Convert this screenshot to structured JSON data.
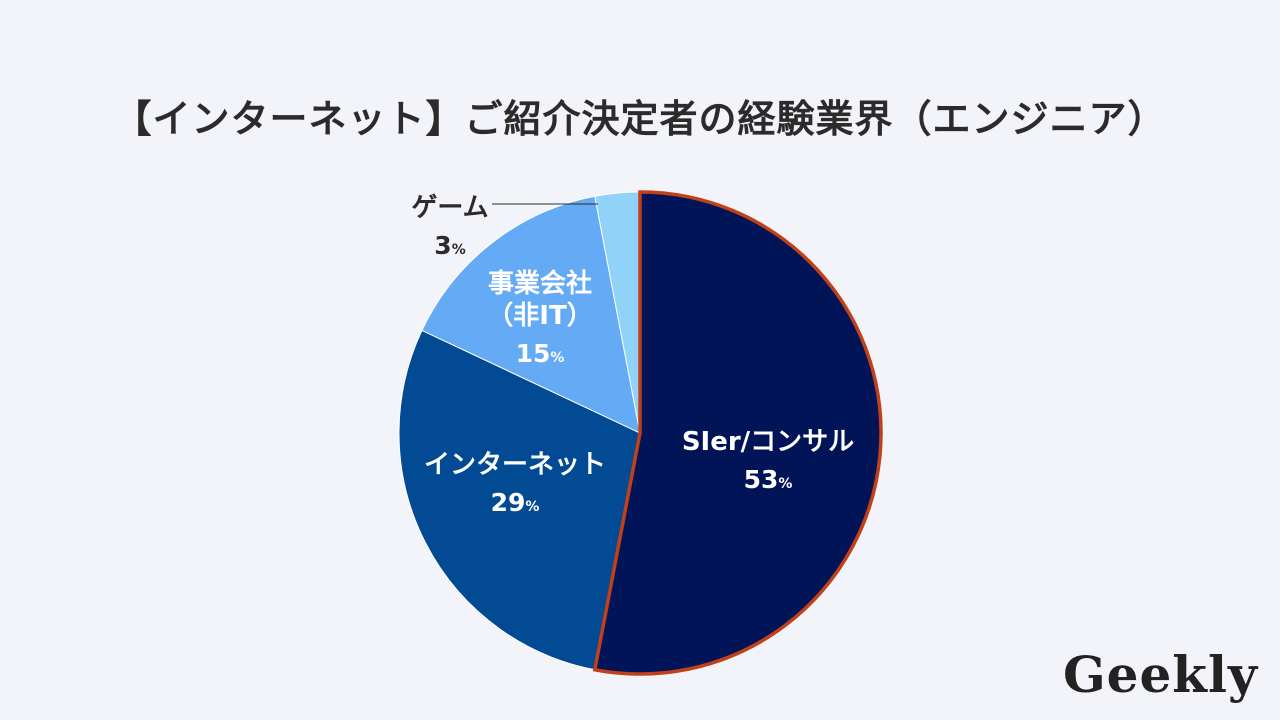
{
  "title": "【インターネット】ご紹介決定者の経験業界（エンジニア）",
  "logo": "Geekly",
  "chart_data": {
    "type": "pie",
    "title": "【インターネット】ご紹介決定者の経験業界（エンジニア）",
    "start": "12 o'clock",
    "direction": "clockwise",
    "percent_symbol": "%",
    "slices": [
      {
        "label_lines": [
          "SIer/コンサル"
        ],
        "value": 53,
        "color": "#021458",
        "text_color": "#ffffff",
        "highlight_color": "#c0401a"
      },
      {
        "label_lines": [
          "インターネット"
        ],
        "value": 29,
        "color": "#024a93",
        "text_color": "#ffffff"
      },
      {
        "label_lines": [
          "事業会社",
          "（非IT）"
        ],
        "value": 15,
        "color": "#64aaf4",
        "text_color": "#ffffff"
      },
      {
        "label_lines": [
          "ゲーム"
        ],
        "value": 3,
        "color": "#90d2f8",
        "text_color": "#2b2b2b",
        "label_outside": true
      }
    ]
  }
}
